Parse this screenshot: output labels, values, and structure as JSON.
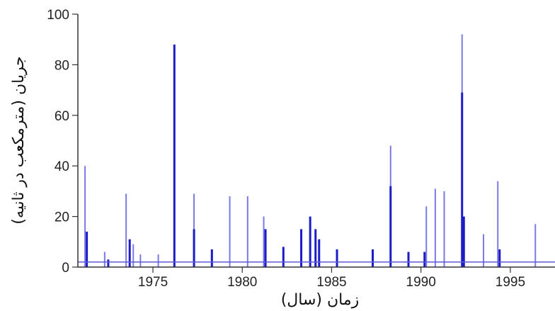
{
  "chart_data": {
    "type": "bar",
    "title": "",
    "xlabel": "زمان (سال)",
    "ylabel": "جریان (مترمکعب در ثانیه)",
    "xlim": [
      1970.8,
      1997.5
    ],
    "ylim": [
      0,
      100
    ],
    "x_ticks": [
      "1975",
      "1980",
      "1985",
      "1990",
      "1995"
    ],
    "y_ticks": [
      "0",
      "20",
      "40",
      "60",
      "80",
      "100"
    ],
    "grid": false,
    "colors": {
      "dark": "#1b1bc8",
      "light": "#7a7ae6",
      "baseline": "#5c5cd6",
      "axis": "#333333"
    },
    "series": [
      {
        "x": [
          1971.2,
          1972.3,
          1973.5,
          1973.9,
          1974.3,
          1975.3,
          1977.3,
          1979.3,
          1980.3,
          1981.2,
          1988.3,
          1990.3,
          1990.8,
          1991.3,
          1992.3,
          1993.5,
          1994.3,
          1996.4
        ],
        "values": [
          40,
          6,
          29,
          9,
          5,
          5,
          29,
          28,
          28,
          20,
          48,
          24,
          31,
          30,
          92,
          13,
          34,
          17
        ],
        "style": "light"
      },
      {
        "x": [
          1971.3,
          1972.5,
          1973.7,
          1976.2,
          1977.3,
          1978.3,
          1981.3,
          1982.3,
          1983.3,
          1983.8,
          1984.1,
          1984.3,
          1985.3,
          1987.3,
          1988.3,
          1989.3,
          1990.2,
          1992.3,
          1992.4,
          1994.4
        ],
        "values": [
          14,
          3,
          11,
          88,
          15,
          7,
          15,
          8,
          15,
          20,
          15,
          11,
          7,
          7,
          32,
          6,
          6,
          69,
          20,
          7
        ],
        "style": "dark"
      }
    ],
    "baseline_value": 2
  }
}
